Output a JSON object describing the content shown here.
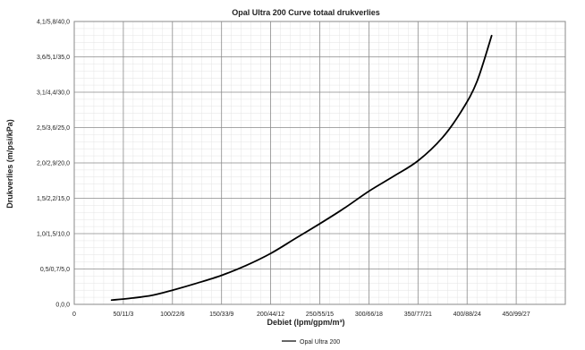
{
  "chart_data": {
    "type": "line",
    "title": "Opal Ultra 200 Curve totaal drukverlies",
    "xlabel": "Debiet (lpm/gpm/m³)",
    "ylabel": "Drukverlies (m/psi/kPa)",
    "x_ticks": [
      {
        "value": 0,
        "label": "0"
      },
      {
        "value": 50,
        "label": "50/11/3"
      },
      {
        "value": 100,
        "label": "100/22/6"
      },
      {
        "value": 150,
        "label": "150/33/9"
      },
      {
        "value": 200,
        "label": "200/44/12"
      },
      {
        "value": 250,
        "label": "250/55/15"
      },
      {
        "value": 300,
        "label": "300/66/18"
      },
      {
        "value": 350,
        "label": "350/77/21"
      },
      {
        "value": 400,
        "label": "400/88/24"
      },
      {
        "value": 450,
        "label": "450/99/27"
      }
    ],
    "y_ticks": [
      {
        "value": 0,
        "label": "0,0,0"
      },
      {
        "value": 0.5,
        "label": "0,5/0,7/5,0"
      },
      {
        "value": 1.0,
        "label": "1,0/1,5/10,0"
      },
      {
        "value": 1.5,
        "label": "1,5/2,2/15,0"
      },
      {
        "value": 2.0,
        "label": "2,0/2,9/20,0"
      },
      {
        "value": 2.5,
        "label": "2,5/3,6/25,0"
      },
      {
        "value": 3.1,
        "label": "3,1/4,4/30,0"
      },
      {
        "value": 3.6,
        "label": "3,6/5,1/35,0"
      },
      {
        "value": 4.1,
        "label": "4,1/5,8/40,0"
      }
    ],
    "xlim": [
      0,
      500
    ],
    "ylim": [
      0,
      4.1
    ],
    "grid": true,
    "minor_grid": true,
    "legend_position": "bottom",
    "series": [
      {
        "name": "Opal Ultra 200",
        "color": "#000000",
        "points": [
          [
            38,
            0.06
          ],
          [
            60,
            0.09
          ],
          [
            80,
            0.13
          ],
          [
            100,
            0.2
          ],
          [
            125,
            0.3
          ],
          [
            150,
            0.41
          ],
          [
            175,
            0.55
          ],
          [
            200,
            0.72
          ],
          [
            225,
            0.93
          ],
          [
            250,
            1.14
          ],
          [
            275,
            1.36
          ],
          [
            300,
            1.6
          ],
          [
            325,
            1.81
          ],
          [
            350,
            2.03
          ],
          [
            375,
            2.36
          ],
          [
            395,
            2.8
          ],
          [
            410,
            3.25
          ],
          [
            425,
            3.9
          ]
        ]
      }
    ]
  }
}
